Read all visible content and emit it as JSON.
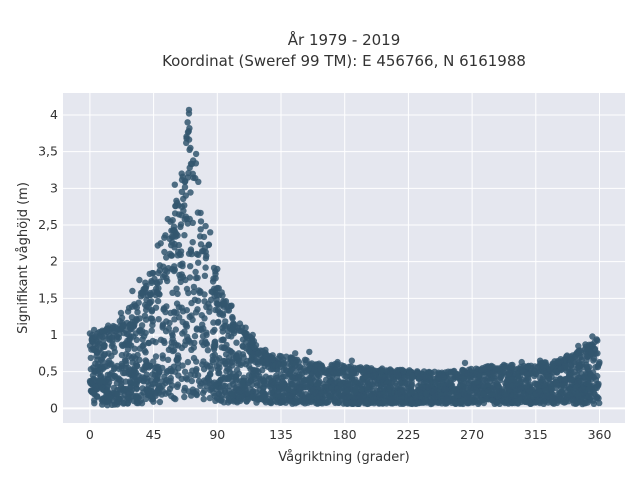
{
  "chart_data": {
    "type": "scatter",
    "title_line1": "År 1979 - 2019",
    "title_line2": "Koordinat (Sweref 99 TM): E 456766, N 6161988",
    "xlabel": "Vågriktning (grader)",
    "ylabel": "Signifikant våghöjd (m)",
    "xlim": [
      -19,
      378
    ],
    "ylim": [
      -0.2,
      4.3
    ],
    "x_ticks": [
      {
        "value": 0,
        "label": "0"
      },
      {
        "value": 45,
        "label": "45"
      },
      {
        "value": 90,
        "label": "90"
      },
      {
        "value": 135,
        "label": "135"
      },
      {
        "value": 180,
        "label": "180"
      },
      {
        "value": 225,
        "label": "225"
      },
      {
        "value": 270,
        "label": "270"
      },
      {
        "value": 315,
        "label": "315"
      },
      {
        "value": 360,
        "label": "360"
      }
    ],
    "y_ticks": [
      {
        "value": 0,
        "label": "0"
      },
      {
        "value": 0.5,
        "label": "0,5"
      },
      {
        "value": 1,
        "label": "1"
      },
      {
        "value": 1.5,
        "label": "1,5"
      },
      {
        "value": 2,
        "label": "2"
      },
      {
        "value": 2.5,
        "label": "2,5"
      },
      {
        "value": 3,
        "label": "3"
      },
      {
        "value": 3.5,
        "label": "3,5"
      },
      {
        "value": 4,
        "label": "4"
      }
    ],
    "grid": true,
    "background_color": "#e5e7ef",
    "marker_color": "#33566e",
    "envelope": {
      "x": [
        0,
        5,
        15,
        25,
        35,
        45,
        55,
        60,
        65,
        68,
        70,
        72,
        75,
        80,
        85,
        90,
        95,
        100,
        105,
        110,
        120,
        130,
        140,
        150,
        165,
        180,
        200,
        225,
        250,
        270,
        290,
        310,
        330,
        345,
        355,
        360
      ],
      "y_max": [
        1.0,
        1.05,
        1.15,
        1.3,
        1.55,
        1.95,
        2.5,
        2.9,
        3.4,
        3.7,
        3.95,
        3.7,
        3.4,
        2.75,
        2.2,
        1.75,
        1.5,
        1.4,
        1.25,
        1.05,
        0.85,
        0.75,
        0.7,
        0.67,
        0.62,
        0.6,
        0.55,
        0.52,
        0.5,
        0.55,
        0.6,
        0.6,
        0.65,
        0.8,
        0.9,
        0.95
      ],
      "y_min": [
        0.02,
        0.02,
        0.02,
        0.02,
        0.02,
        0.03,
        0.05,
        0.06,
        0.07,
        0.08,
        0.08,
        0.08,
        0.07,
        0.06,
        0.05,
        0.05,
        0.05,
        0.05,
        0.05,
        0.05,
        0.05,
        0.05,
        0.05,
        0.05,
        0.05,
        0.05,
        0.05,
        0.05,
        0.05,
        0.05,
        0.05,
        0.05,
        0.05,
        0.04,
        0.03,
        0.02
      ]
    },
    "outliers": [
      {
        "x": 70,
        "y": 4.07
      },
      {
        "x": 70,
        "y": 4.02
      },
      {
        "x": 69,
        "y": 3.9
      },
      {
        "x": 68,
        "y": 3.62
      },
      {
        "x": 71,
        "y": 3.55
      },
      {
        "x": 75,
        "y": 3.47
      },
      {
        "x": 60,
        "y": 3.05
      },
      {
        "x": 55,
        "y": 2.58
      },
      {
        "x": 50,
        "y": 2.25
      },
      {
        "x": 48,
        "y": 2.22
      },
      {
        "x": 85,
        "y": 2.4
      },
      {
        "x": 90,
        "y": 1.9
      },
      {
        "x": 95,
        "y": 1.45
      },
      {
        "x": 100,
        "y": 1.4
      },
      {
        "x": 110,
        "y": 1.1
      },
      {
        "x": 115,
        "y": 1.0
      },
      {
        "x": 155,
        "y": 0.77
      },
      {
        "x": 145,
        "y": 0.75
      },
      {
        "x": 185,
        "y": 0.65
      },
      {
        "x": 175,
        "y": 0.63
      },
      {
        "x": 265,
        "y": 0.62
      },
      {
        "x": 305,
        "y": 0.63
      },
      {
        "x": 318,
        "y": 0.65
      },
      {
        "x": 345,
        "y": 0.85
      },
      {
        "x": 350,
        "y": 0.87
      },
      {
        "x": 355,
        "y": 0.98
      },
      {
        "x": 358,
        "y": 0.94
      },
      {
        "x": 0,
        "y": 1.02
      },
      {
        "x": 3,
        "y": 1.07
      },
      {
        "x": 22,
        "y": 1.3
      },
      {
        "x": 30,
        "y": 1.6
      },
      {
        "x": 35,
        "y": 1.75
      }
    ]
  }
}
